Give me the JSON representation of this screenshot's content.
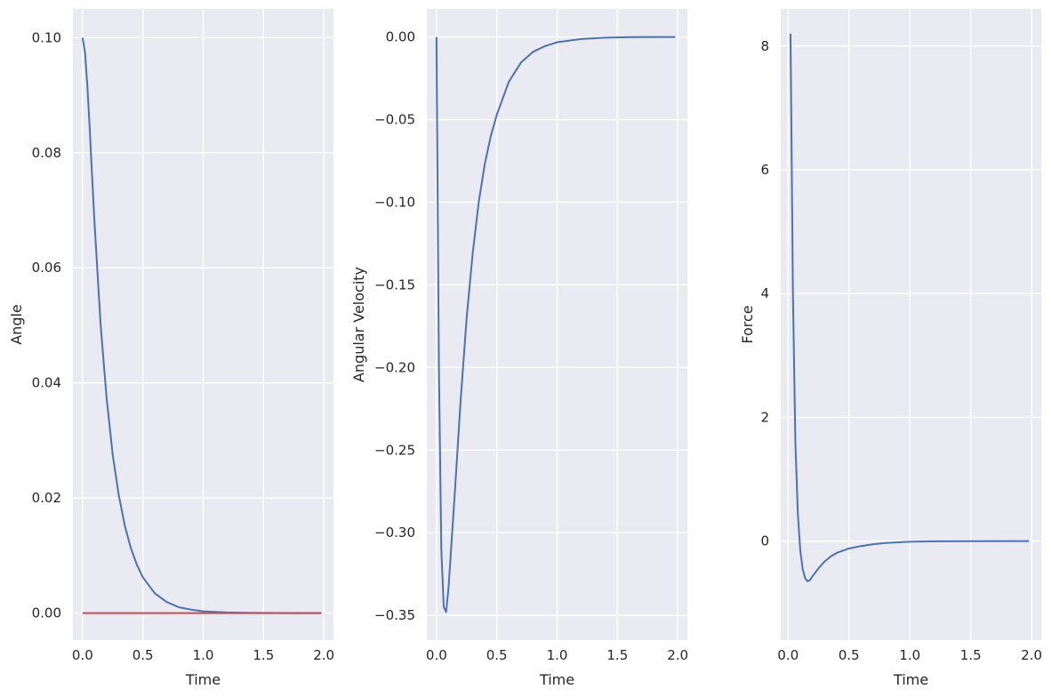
{
  "chart_data": [
    {
      "type": "line",
      "xlabel": "Time",
      "ylabel": "Angle",
      "xlim": [
        -0.08,
        2.08
      ],
      "ylim": [
        -0.0047,
        0.105
      ],
      "xticks": [
        0.0,
        0.5,
        1.0,
        1.5,
        2.0
      ],
      "xtick_labels": [
        "0.0",
        "0.5",
        "1.0",
        "1.5",
        "2.0"
      ],
      "yticks": [
        0.0,
        0.02,
        0.04,
        0.06,
        0.08,
        0.1
      ],
      "ytick_labels": [
        "0.00",
        "0.02",
        "0.04",
        "0.06",
        "0.08",
        "0.10"
      ],
      "grid": true,
      "series": [
        {
          "color": "#4c72b0",
          "x": [
            0.0,
            0.02,
            0.04,
            0.06,
            0.08,
            0.1,
            0.15,
            0.2,
            0.25,
            0.3,
            0.35,
            0.4,
            0.45,
            0.5,
            0.6,
            0.7,
            0.8,
            0.9,
            1.0,
            1.2,
            1.4,
            1.6,
            1.8,
            1.98
          ],
          "y": [
            0.1,
            0.0975,
            0.0915,
            0.084,
            0.0755,
            0.0675,
            0.05,
            0.0372,
            0.0275,
            0.0205,
            0.0152,
            0.0113,
            0.0084,
            0.0062,
            0.0034,
            0.0019,
            0.001,
            0.0006,
            0.0003,
            0.0001,
            3e-05,
            1e-05,
            0.0,
            0.0
          ]
        },
        {
          "color": "#c44e52",
          "x": [
            0.0,
            1.98
          ],
          "y": [
            0.0,
            0.0
          ]
        }
      ]
    },
    {
      "type": "line",
      "xlabel": "Time",
      "ylabel": "Angular Velocity",
      "xlim": [
        -0.08,
        2.08
      ],
      "ylim": [
        -0.365,
        0.017
      ],
      "xticks": [
        0.0,
        0.5,
        1.0,
        1.5,
        2.0
      ],
      "xtick_labels": [
        "0.0",
        "0.5",
        "1.0",
        "1.5",
        "2.0"
      ],
      "yticks": [
        -0.35,
        -0.3,
        -0.25,
        -0.2,
        -0.15,
        -0.1,
        -0.05,
        0.0
      ],
      "ytick_labels": [
        "−0.35",
        "−0.30",
        "−0.25",
        "−0.20",
        "−0.15",
        "−0.10",
        "−0.05",
        "0.00"
      ],
      "grid": true,
      "series": [
        {
          "color": "#4c72b0",
          "x": [
            0.0,
            0.02,
            0.04,
            0.06,
            0.08,
            0.1,
            0.15,
            0.2,
            0.25,
            0.3,
            0.35,
            0.4,
            0.45,
            0.5,
            0.6,
            0.7,
            0.8,
            0.9,
            1.0,
            1.2,
            1.4,
            1.6,
            1.8,
            1.98
          ],
          "y": [
            0.0,
            -0.2,
            -0.31,
            -0.345,
            -0.348,
            -0.333,
            -0.278,
            -0.22,
            -0.17,
            -0.131,
            -0.1,
            -0.077,
            -0.06,
            -0.047,
            -0.027,
            -0.0155,
            -0.009,
            -0.0055,
            -0.0032,
            -0.0012,
            -0.0004,
            -0.0001,
            0.0,
            0.0
          ]
        }
      ]
    },
    {
      "type": "line",
      "xlabel": "Time",
      "ylabel": "Force",
      "xlim": [
        -0.06,
        2.08
      ],
      "ylim": [
        -1.6,
        8.6
      ],
      "xticks": [
        0.0,
        0.5,
        1.0,
        1.5,
        2.0
      ],
      "xtick_labels": [
        "0.0",
        "0.5",
        "1.0",
        "1.5",
        "2.0"
      ],
      "yticks": [
        0,
        2,
        4,
        6,
        8
      ],
      "ytick_labels": [
        "0",
        "2",
        "4",
        "6",
        "8"
      ],
      "grid": true,
      "series": [
        {
          "color": "#4c72b0",
          "x": [
            0.02,
            0.04,
            0.06,
            0.08,
            0.1,
            0.12,
            0.14,
            0.16,
            0.18,
            0.2,
            0.25,
            0.3,
            0.35,
            0.4,
            0.5,
            0.6,
            0.7,
            0.8,
            1.0,
            1.2,
            1.5,
            1.98
          ],
          "y": [
            8.2,
            4.0,
            1.6,
            0.45,
            -0.15,
            -0.45,
            -0.6,
            -0.65,
            -0.63,
            -0.57,
            -0.44,
            -0.33,
            -0.25,
            -0.19,
            -0.12,
            -0.08,
            -0.05,
            -0.03,
            -0.01,
            -0.004,
            -0.001,
            0.0
          ]
        }
      ]
    }
  ]
}
